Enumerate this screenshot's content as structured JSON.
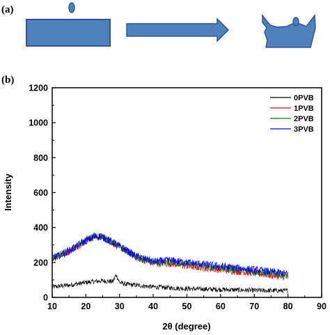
{
  "panels": {
    "a_label": "(a)",
    "b_label": "(b)"
  },
  "colors": {
    "shape_fill": "#4f81bd",
    "shape_stroke": "#2f5597"
  },
  "chart_data": {
    "type": "line",
    "xlabel": "2θ  (degree)",
    "ylabel": "Intensity",
    "xlim": [
      10,
      90
    ],
    "ylim": [
      0,
      1200
    ],
    "xticks": [
      10,
      20,
      30,
      40,
      50,
      60,
      70,
      80,
      90
    ],
    "yticks": [
      0,
      200,
      400,
      600,
      800,
      1000,
      1200
    ],
    "grid": false,
    "legend_position": "top-right",
    "series": [
      {
        "name": "0PVB",
        "color": "#000000",
        "noise": 14,
        "x": [
          10,
          15,
          20,
          22,
          25,
          28,
          29,
          30,
          32,
          35,
          40,
          50,
          60,
          70,
          80
        ],
        "y": [
          60,
          70,
          85,
          90,
          95,
          90,
          130,
          85,
          75,
          70,
          60,
          50,
          45,
          40,
          38
        ]
      },
      {
        "name": "1PVB",
        "color": "#ff0000",
        "noise": 22,
        "x": [
          10,
          15,
          20,
          23,
          25,
          30,
          35,
          40,
          45,
          50,
          60,
          70,
          80
        ],
        "y": [
          225,
          265,
          325,
          350,
          345,
          290,
          230,
          195,
          195,
          180,
          160,
          140,
          115
        ]
      },
      {
        "name": "2PVB",
        "color": "#008000",
        "noise": 22,
        "x": [
          10,
          15,
          20,
          23,
          25,
          30,
          35,
          40,
          45,
          50,
          60,
          70,
          80
        ],
        "y": [
          225,
          268,
          330,
          355,
          348,
          292,
          232,
          200,
          205,
          190,
          170,
          148,
          125
        ]
      },
      {
        "name": "3PVB",
        "color": "#0000ff",
        "noise": 22,
        "x": [
          10,
          15,
          20,
          23,
          25,
          30,
          35,
          40,
          45,
          50,
          60,
          70,
          80
        ],
        "y": [
          222,
          265,
          325,
          350,
          345,
          292,
          235,
          205,
          212,
          200,
          178,
          158,
          135
        ]
      }
    ]
  }
}
